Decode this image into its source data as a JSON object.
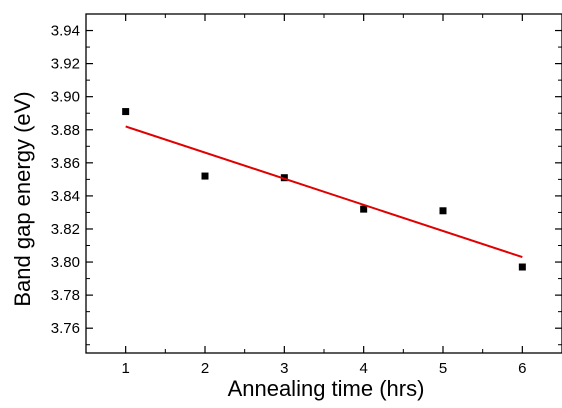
{
  "chart_data": {
    "type": "scatter",
    "xlabel": "Annealing time (hrs)",
    "ylabel": "Band gap energy (eV)",
    "xlim": [
      0.5,
      6.5
    ],
    "ylim": [
      3.745,
      3.95
    ],
    "x_ticks": [
      "1",
      "2",
      "3",
      "4",
      "5",
      "6"
    ],
    "y_ticks": [
      "3.76",
      "3.78",
      "3.80",
      "3.82",
      "3.84",
      "3.86",
      "3.88",
      "3.90",
      "3.92",
      "3.94"
    ],
    "grid": false,
    "series": [
      {
        "type": "scatter",
        "marker": "square",
        "color": "#000000",
        "x": [
          1,
          2,
          3,
          4,
          5,
          6
        ],
        "y": [
          3.891,
          3.852,
          3.851,
          3.832,
          3.831,
          3.797
        ]
      },
      {
        "type": "line",
        "color": "#e00000",
        "x": [
          1,
          6
        ],
        "y": [
          3.882,
          3.803
        ]
      }
    ]
  }
}
